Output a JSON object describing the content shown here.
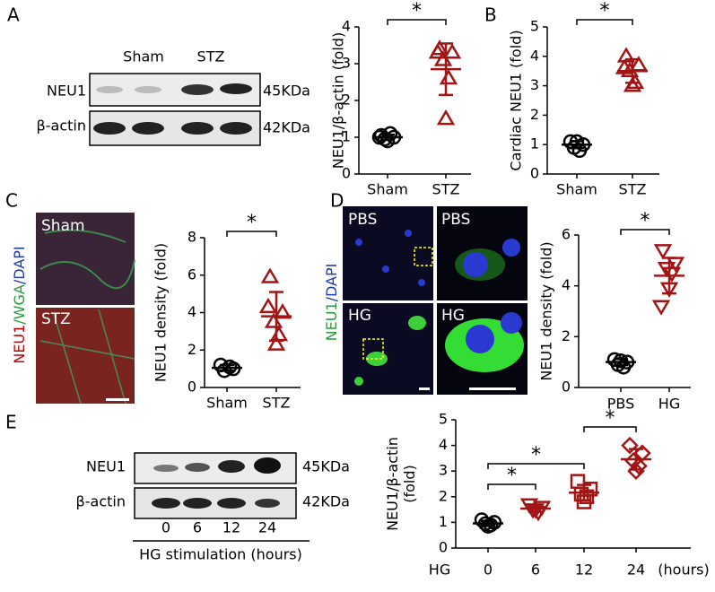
{
  "panel_letters": [
    "A",
    "B",
    "C",
    "D",
    "E"
  ],
  "blot_a": {
    "lanes": [
      "Sham",
      "STZ"
    ],
    "rows": [
      "NEU1",
      "β-actin"
    ],
    "sizes": [
      "45KDa",
      "42KDa"
    ]
  },
  "images_c": {
    "stain": [
      "NEU1",
      "/WGA",
      "/DAPI"
    ],
    "labels": [
      "Sham",
      "STZ"
    ]
  },
  "images_d": {
    "stain": [
      "NEU1",
      "/DAPI"
    ],
    "labels": [
      "PBS",
      "PBS",
      "HG",
      "HG"
    ]
  },
  "blot_e": {
    "rows": [
      "NEU1",
      "β-actin"
    ],
    "sizes": [
      "45KDa",
      "42KDa"
    ],
    "lanes": [
      "0",
      "6",
      "12",
      "24"
    ],
    "xlabel": "HG stimulation (hours)"
  },
  "chart_data": [
    {
      "type": "dot",
      "ylabel": [
        "NEU1/β-actin (fold)"
      ],
      "ylim": [
        0,
        4
      ],
      "yticks": [
        0,
        1,
        2,
        3,
        4
      ],
      "groups": [
        {
          "label": "Sham",
          "marker": "circle",
          "color": "#000000",
          "values": [
            1.05,
            1.0,
            0.95,
            1.1,
            0.9,
            1.0
          ],
          "mean": 1.0,
          "sd": 0.07
        },
        {
          "label": "STZ",
          "marker": "triangle",
          "color": "#a31515",
          "values": [
            3.4,
            3.3,
            3.1,
            2.6,
            1.5,
            3.3
          ],
          "mean": 2.85,
          "sd": 0.7
        }
      ],
      "significance": [
        {
          "between": [
            "Sham",
            "STZ"
          ],
          "label": "*"
        }
      ]
    },
    {
      "type": "dot",
      "ylabel": [
        "Cardiac NEU1 (fold)"
      ],
      "ylim": [
        0,
        5
      ],
      "yticks": [
        0,
        1,
        2,
        3,
        4,
        5
      ],
      "groups": [
        {
          "label": "Sham",
          "marker": "circle",
          "color": "#000000",
          "values": [
            1.1,
            1.0,
            0.9,
            0.8,
            1.1
          ],
          "mean": 1.0,
          "sd": 0.12
        },
        {
          "label": "STZ",
          "marker": "triangle",
          "color": "#a31515",
          "values": [
            4.0,
            3.7,
            3.5,
            3.1,
            3.0,
            3.6
          ],
          "mean": 3.5,
          "sd": 0.4
        }
      ],
      "significance": [
        {
          "between": [
            "Sham",
            "STZ"
          ],
          "label": "*"
        }
      ]
    },
    {
      "type": "dot",
      "ylabel": [
        "NEU1 density (fold)"
      ],
      "ylim": [
        0,
        8
      ],
      "yticks": [
        0,
        2,
        4,
        6,
        8
      ],
      "groups": [
        {
          "label": "Sham",
          "marker": "circle",
          "color": "#000000",
          "values": [
            1.2,
            1.0,
            0.9,
            1.1
          ],
          "mean": 1.05,
          "sd": 0.15
        },
        {
          "label": "STZ",
          "marker": "triangle",
          "color": "#a31515",
          "values": [
            5.9,
            4.0,
            3.5,
            2.8,
            2.3,
            4.3
          ],
          "mean": 3.8,
          "sd": 1.3
        }
      ],
      "significance": [
        {
          "between": [
            "Sham",
            "STZ"
          ],
          "label": "*"
        }
      ]
    },
    {
      "type": "dot",
      "ylabel": [
        "NEU1 density (fold)"
      ],
      "ylim": [
        0,
        6
      ],
      "yticks": [
        0,
        2,
        4,
        6
      ],
      "groups": [
        {
          "label": "PBS",
          "marker": "circle",
          "color": "#000000",
          "values": [
            1.1,
            1.0,
            0.9,
            0.8,
            1.05
          ],
          "mean": 1.0,
          "sd": 0.12
        },
        {
          "label": "HG",
          "marker": "triangle-down",
          "color": "#a31515",
          "values": [
            5.4,
            4.9,
            4.7,
            4.5,
            3.9,
            3.2
          ],
          "mean": 4.4,
          "sd": 0.7
        }
      ],
      "significance": [
        {
          "between": [
            "PBS",
            "HG"
          ],
          "label": "*"
        }
      ]
    },
    {
      "type": "dot",
      "ylabel": [
        "NEU1/β-actin",
        "(fold)"
      ],
      "ylim": [
        0,
        5
      ],
      "yticks": [
        0,
        1,
        2,
        3,
        4,
        5
      ],
      "x_prefix": "HG",
      "x_suffix": "(hours)",
      "groups": [
        {
          "label": "0",
          "marker": "circle",
          "color": "#000000",
          "values": [
            1.1,
            1.0,
            0.95,
            0.9,
            0.85
          ],
          "mean": 0.96,
          "sd": 0.1
        },
        {
          "label": "6",
          "marker": "triangle-down",
          "color": "#a31515",
          "values": [
            1.7,
            1.6,
            1.5,
            1.4,
            1.5
          ],
          "mean": 1.54,
          "sd": 0.12
        },
        {
          "label": "12",
          "marker": "square",
          "color": "#a31515",
          "values": [
            2.6,
            2.3,
            2.1,
            2.0,
            1.8
          ],
          "mean": 2.16,
          "sd": 0.3
        },
        {
          "label": "24",
          "marker": "diamond",
          "color": "#a31515",
          "values": [
            4.0,
            3.7,
            3.4,
            3.2,
            3.0
          ],
          "mean": 3.46,
          "sd": 0.4
        }
      ],
      "significance": [
        {
          "between": [
            "0",
            "6"
          ],
          "label": "*"
        },
        {
          "between": [
            "0",
            "12"
          ],
          "label": "*"
        },
        {
          "between": [
            "12",
            "24"
          ],
          "label": "*"
        }
      ]
    }
  ]
}
